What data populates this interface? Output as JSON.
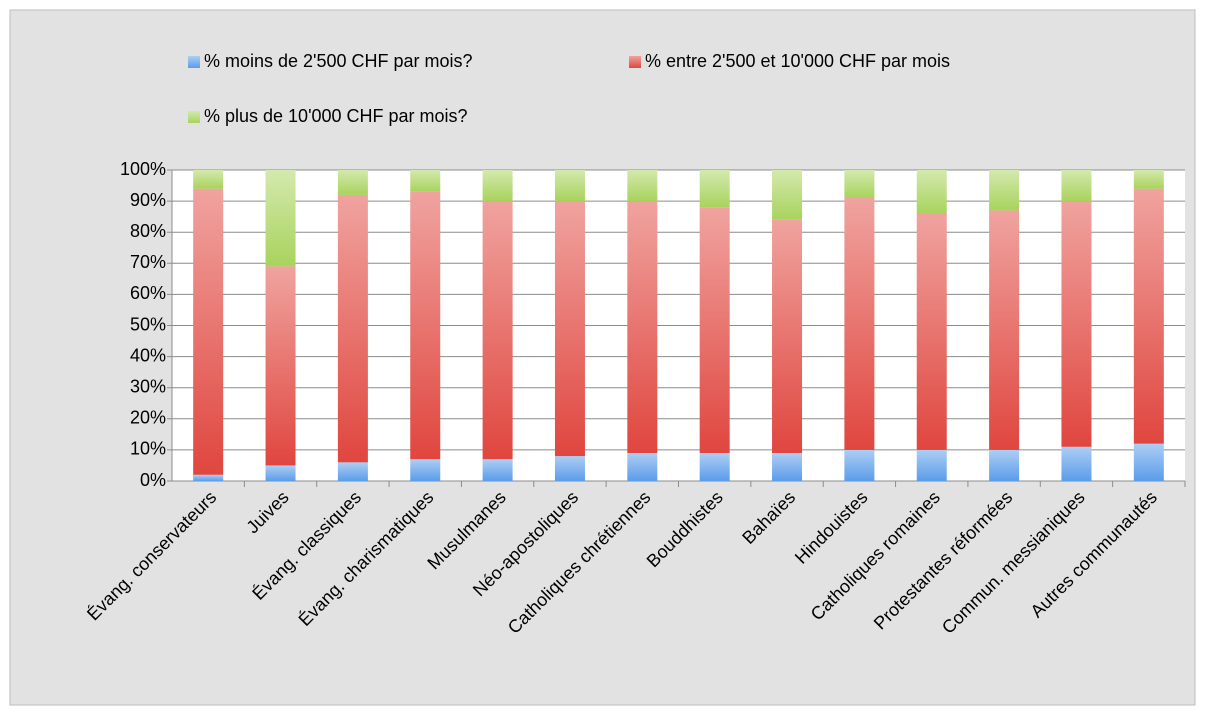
{
  "chart_data": {
    "type": "stacked-bar",
    "categories": [
      "Évang. conservateurs",
      "Juives",
      "Évang. classiques",
      "Évang. charismatiques",
      "Musulmanes",
      "Néo-apostoliques",
      "Catholiques chrétiennes",
      "Bouddhistes",
      "Bahaïes",
      "Hindouistes",
      "Catholiques romaines",
      "Protestantes réformées",
      "Commun. messianiques",
      "Autres communautés"
    ],
    "series": [
      {
        "name": "% moins de 2'500 CHF par mois?",
        "color": "#5b9ce9",
        "values": [
          2,
          5,
          6,
          7,
          7,
          8,
          9,
          9,
          9,
          10,
          10,
          10,
          11,
          12
        ]
      },
      {
        "name": "% entre 2'500 et 10'000 CHF par mois",
        "color": "#e0463f",
        "values": [
          92,
          64,
          86,
          86,
          83,
          82,
          81,
          79,
          75,
          81,
          76,
          77,
          79,
          82
        ]
      },
      {
        "name": "% plus de 10'000 CHF par mois?",
        "color": "#a8d35c",
        "values": [
          6,
          31,
          8,
          7,
          10,
          10,
          10,
          12,
          16,
          9,
          14,
          13,
          10,
          6
        ]
      }
    ],
    "ylim": [
      0,
      100
    ],
    "yticks": [
      {
        "value": 0,
        "label": "0%"
      },
      {
        "value": 10,
        "label": "10%"
      },
      {
        "value": 20,
        "label": "20%"
      },
      {
        "value": 30,
        "label": "30%"
      },
      {
        "value": 40,
        "label": "40%"
      },
      {
        "value": 50,
        "label": "50%"
      },
      {
        "value": 60,
        "label": "60%"
      },
      {
        "value": 70,
        "label": "70%"
      },
      {
        "value": 80,
        "label": "80%"
      },
      {
        "value": 90,
        "label": "90%"
      },
      {
        "value": 100,
        "label": "100%"
      }
    ],
    "grid": true
  }
}
